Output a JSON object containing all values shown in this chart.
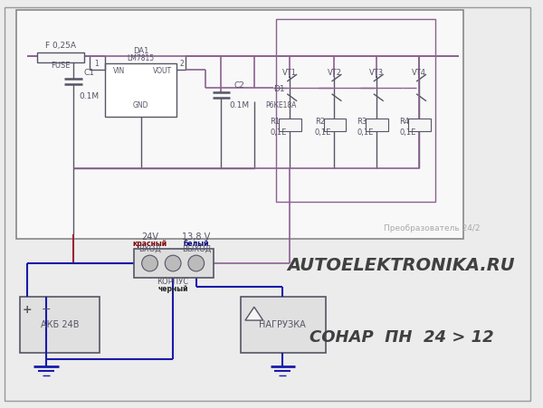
{
  "bg_color": "#ececec",
  "wire_red": "#9b2335",
  "wire_blue": "#1a1aaa",
  "wire_purple": "#8b6090",
  "dark": "#555566",
  "comp_fc": "#f5f5f5",
  "title": "AUTOELEKTRONIKA.RU",
  "subtitle": "СОНАР  ПН  24 > 12",
  "watermark": "Преобразователь 24/2"
}
